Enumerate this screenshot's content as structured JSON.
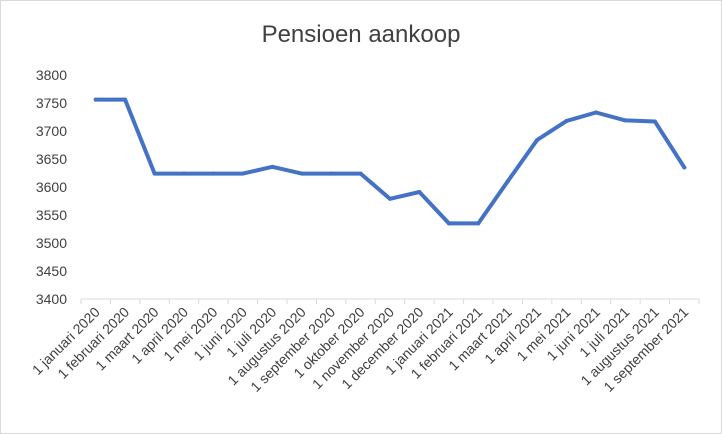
{
  "chart_data": {
    "type": "line",
    "title": "Pensioen aankoop",
    "xlabel": "",
    "ylabel": "",
    "ylim": [
      3400,
      3800
    ],
    "yticks": [
      "3800",
      "3750",
      "3700",
      "3650",
      "3600",
      "3550",
      "3500",
      "3450",
      "3400"
    ],
    "grid": false,
    "legend": "none",
    "line_color": "#4472c4",
    "categories": [
      "1 januari 2020",
      "1 februari 2020",
      "1 maart 2020",
      "1 april 2020",
      "1 mei 2020",
      "1 juni 2020",
      "1 juli 2020",
      "1 augustus 2020",
      "1 september 2020",
      "1 oktober 2020",
      "1 november 2020",
      "1 december 2020",
      "1 januari 2021",
      "1 februari 2021",
      "1 maart 2021",
      "1 april 2021",
      "1 mei 2021",
      "1 juni 2021",
      "1 juli 2021",
      "1 augustus 2021",
      "1 september 2021"
    ],
    "values": [
      3756,
      3756,
      3624,
      3624,
      3624,
      3624,
      3636,
      3624,
      3624,
      3624,
      3579,
      3591,
      3535,
      3535,
      3610,
      3684,
      3718,
      3733,
      3719,
      3717,
      3635
    ]
  }
}
